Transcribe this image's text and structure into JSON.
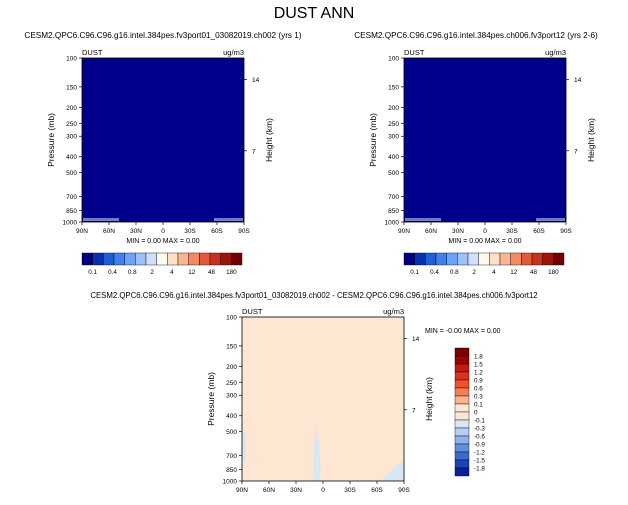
{
  "figure_title": "DUST ANN",
  "panel_field": "DUST",
  "panel_units": "ug/m3",
  "chart_data": [
    {
      "type": "heatmap",
      "title": "CESM2.QPC6.C96.C96.g16.intel.384pes.fv3port01_03082019.ch002 (yrs 1)",
      "variable": "DUST",
      "units": "ug/m3",
      "xlabel": "",
      "ylabel": "Pressure (mb)",
      "y2label": "Height (km)",
      "x_ticks": [
        "90N",
        "60N",
        "30N",
        "0",
        "30S",
        "60S",
        "90S"
      ],
      "y_ticks": [
        100,
        150,
        200,
        250,
        300,
        400,
        500,
        700,
        850,
        1000
      ],
      "y_scale": "log",
      "ylim": [
        100,
        1000
      ],
      "y2_ticks": [
        14,
        7
      ],
      "min_text": "MIN =  0.00  MAX =  0.00",
      "fill_value": 0,
      "fill_color": "#01008c",
      "grid": false
    },
    {
      "type": "heatmap",
      "title": "CESM2.QPC6.C96.C96.g16.intel.384pes.ch006.fv3port12 (yrs 2-6)",
      "variable": "DUST",
      "units": "ug/m3",
      "xlabel": "",
      "ylabel": "Pressure (mb)",
      "y2label": "Height (km)",
      "x_ticks": [
        "90N",
        "60N",
        "30N",
        "0",
        "30S",
        "60S",
        "90S"
      ],
      "y_ticks": [
        100,
        150,
        200,
        250,
        300,
        400,
        500,
        700,
        850,
        1000
      ],
      "y_scale": "log",
      "ylim": [
        100,
        1000
      ],
      "y2_ticks": [
        14,
        7
      ],
      "min_text": "MIN =  0.00  MAX =  0.00",
      "fill_value": 0,
      "fill_color": "#01008c",
      "grid": false
    },
    {
      "type": "heatmap",
      "title": "CESM2.QPC6.C96.C96.g16.intel.384pes.fv3port01_03082019.ch002 - CESM2.QPC6.C96.C96.g16.intel.384pes.ch006.fv3port12",
      "variable": "DUST",
      "units": "ug/m3",
      "xlabel": "",
      "ylabel": "Pressure (mb)",
      "y2label": "Height (km)",
      "x_ticks": [
        "90N",
        "60N",
        "30N",
        "0",
        "30S",
        "60S",
        "90S"
      ],
      "y_ticks": [
        100,
        150,
        200,
        250,
        300,
        400,
        500,
        700,
        850,
        1000
      ],
      "y_scale": "log",
      "ylim": [
        100,
        1000
      ],
      "y2_ticks": [
        14,
        7
      ],
      "min_text": "MIN = -0.00  MAX =  0.00",
      "fill_value": 0,
      "fill_color": "#fde6d2",
      "grid": false
    }
  ],
  "colorbar_abs": {
    "labels": [
      "0.1",
      "0.4",
      "0.8",
      "2",
      "4",
      "12",
      "48",
      "180"
    ],
    "colors": [
      "#000080",
      "#0a2fb0",
      "#1f5fd6",
      "#3f80ef",
      "#6da2f7",
      "#9cc2fb",
      "#cfe0fb",
      "#fffbea",
      "#fde0c8",
      "#fbb592",
      "#f48a63",
      "#e35a3b",
      "#c7321d",
      "#9e1409",
      "#720000"
    ]
  },
  "colorbar_diff": {
    "labels": [
      "1.8",
      "1.5",
      "1.2",
      "0.9",
      "0.6",
      "0.3",
      "0.1",
      "0",
      "-0.1",
      "-0.3",
      "-0.6",
      "-0.9",
      "-1.2",
      "-1.5",
      "-1.8"
    ],
    "colors": [
      "#7a0000",
      "#a00000",
      "#c8180f",
      "#e0301d",
      "#f0502d",
      "#f88050",
      "#fbb38f",
      "#fde6d2",
      "#fde6d2",
      "#d8e6f6",
      "#b5cff0",
      "#8cb3ea",
      "#5e8ee0",
      "#3a69d1",
      "#1c42b8",
      "#0a1f9a"
    ]
  }
}
